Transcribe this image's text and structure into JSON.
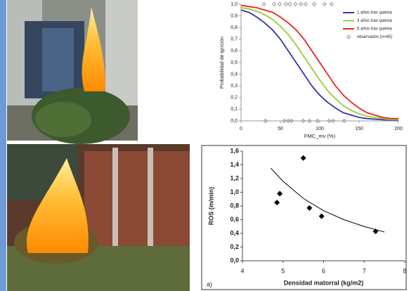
{
  "chart_data": [
    {
      "type": "line",
      "ylabel": "Probabilidad de ignición",
      "xlabel": "FMC_mv (%)",
      "xlim": [
        0,
        200
      ],
      "xticks": [
        0,
        50,
        100,
        150,
        200
      ],
      "ylim": [
        0,
        1.0
      ],
      "yticks": [
        {
          "value": 0,
          "label": "0,0"
        },
        {
          "value": 0.1,
          "label": "0,1"
        },
        {
          "value": 0.2,
          "label": "0,2"
        },
        {
          "value": 0.3,
          "label": "0,3"
        },
        {
          "value": 0.4,
          "label": "0,4"
        },
        {
          "value": 0.5,
          "label": "0,5"
        },
        {
          "value": 0.6,
          "label": "0,6"
        },
        {
          "value": 0.7,
          "label": "0,7"
        },
        {
          "value": 0.8,
          "label": "0,8"
        },
        {
          "value": 0.9,
          "label": "0,9"
        },
        {
          "value": 1.0,
          "label": "1,0"
        }
      ],
      "legend": "upper right",
      "series": [
        {
          "name": "1 años tras quema",
          "color": "#3333aa",
          "x": [
            0,
            10,
            20,
            30,
            40,
            50,
            60,
            70,
            80,
            90,
            100,
            110,
            120,
            130,
            140,
            150,
            160,
            170,
            180,
            190,
            200
          ],
          "values": [
            0.95,
            0.93,
            0.89,
            0.84,
            0.78,
            0.7,
            0.6,
            0.5,
            0.4,
            0.3,
            0.22,
            0.16,
            0.11,
            0.07,
            0.05,
            0.03,
            0.02,
            0.015,
            0.01,
            0.006,
            0.004
          ]
        },
        {
          "name": "3 años tras quema",
          "color": "#99cc33",
          "x": [
            0,
            10,
            20,
            30,
            40,
            50,
            60,
            70,
            80,
            90,
            100,
            110,
            120,
            130,
            140,
            150,
            160,
            170,
            180,
            190,
            200
          ],
          "values": [
            0.97,
            0.96,
            0.94,
            0.91,
            0.87,
            0.81,
            0.74,
            0.65,
            0.55,
            0.45,
            0.35,
            0.26,
            0.19,
            0.13,
            0.09,
            0.06,
            0.04,
            0.03,
            0.02,
            0.01,
            0.01
          ]
        },
        {
          "name": "5 años tras quema",
          "color": "#ee2222",
          "x": [
            0,
            10,
            20,
            30,
            40,
            50,
            60,
            70,
            80,
            90,
            100,
            110,
            120,
            130,
            140,
            150,
            160,
            170,
            180,
            190,
            200
          ],
          "values": [
            0.99,
            0.98,
            0.97,
            0.95,
            0.93,
            0.89,
            0.84,
            0.78,
            0.7,
            0.6,
            0.5,
            0.4,
            0.3,
            0.22,
            0.16,
            0.11,
            0.07,
            0.05,
            0.03,
            0.02,
            0.02
          ]
        },
        {
          "name": "observados (n=65)",
          "color": "#999999",
          "marker": "diamond",
          "x": [
            29,
            42,
            49,
            57,
            62,
            69,
            76,
            82,
            93,
            106,
            115,
            31,
            55,
            60,
            64,
            79,
            87,
            97,
            112,
            117,
            131
          ],
          "values": [
            1,
            1,
            1,
            1,
            1,
            1,
            1,
            1,
            1,
            1,
            1,
            0,
            0,
            0,
            0,
            0,
            0,
            0,
            0,
            0,
            0
          ]
        }
      ]
    },
    {
      "type": "scatter",
      "ylabel": "ROS (m/min)",
      "xlabel": "Densidad matorral (kg/m2)",
      "annotation": "a)",
      "xlim": [
        4,
        8
      ],
      "xticks": [
        4,
        5,
        6,
        7,
        8
      ],
      "ylim": [
        0,
        1.6
      ],
      "yticks": [
        {
          "value": 0,
          "label": "0,0"
        },
        {
          "value": 0.2,
          "label": "0,2"
        },
        {
          "value": 0.4,
          "label": "0,4"
        },
        {
          "value": 0.6,
          "label": "0,6"
        },
        {
          "value": 0.8,
          "label": "0,8"
        },
        {
          "value": 1.0,
          "label": "1,0"
        },
        {
          "value": 1.2,
          "label": "1,2"
        },
        {
          "value": 1.4,
          "label": "1,4"
        },
        {
          "value": 1.6,
          "label": "1,6"
        }
      ],
      "series": [
        {
          "color": "#000000",
          "marker": "diamond",
          "x": [
            4.85,
            4.92,
            5.5,
            5.65,
            5.95,
            7.28
          ],
          "values": [
            0.85,
            0.98,
            1.5,
            0.77,
            0.65,
            0.43
          ]
        }
      ],
      "trend": {
        "color": "#000000",
        "x": [
          4.7,
          5,
          5.5,
          6,
          6.5,
          7,
          7.5
        ],
        "values": [
          1.35,
          1.16,
          0.91,
          0.73,
          0.6,
          0.5,
          0.42
        ]
      }
    }
  ]
}
